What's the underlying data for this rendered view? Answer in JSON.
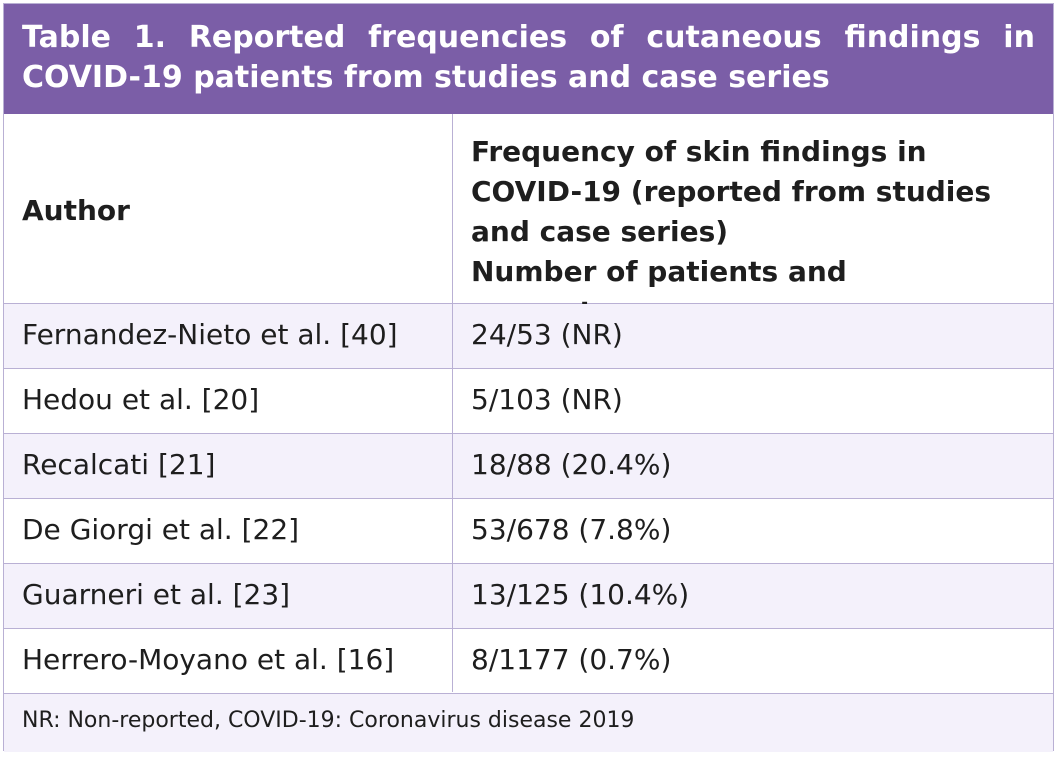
{
  "table": {
    "title_line1_words": [
      "Table",
      "1.",
      "Reported",
      "frequencies",
      "of",
      "cutaneous",
      "findings",
      "in"
    ],
    "title_line2": "COVID-19 patients from studies and case series",
    "header": {
      "author": "Author",
      "frequency_lines": [
        "Frequency of skin findings in",
        "COVID-19 (reported from studies",
        "and case series)",
        "Number of patients and percentages"
      ]
    },
    "rows": [
      {
        "author": "Fernandez-Nieto et al. [40]",
        "frequency": "24/53 (NR)"
      },
      {
        "author": "Hedou et al. [20]",
        "frequency": "5/103 (NR)"
      },
      {
        "author": "Recalcati [21]",
        "frequency": "18/88 (20.4%)"
      },
      {
        "author": "De Giorgi et al. [22]",
        "frequency": "53/678 (7.8%)"
      },
      {
        "author": "Guarneri et al. [23]",
        "frequency": "13/125 (10.4%)"
      },
      {
        "author": "Herrero-Moyano et al. [16]",
        "frequency": "8/1177 (0.7%)"
      }
    ],
    "footnote": "NR: Non-reported, COVID-19: Coronavirus disease 2019"
  },
  "colors": {
    "title_bg": "#7b5ea7",
    "row_shade": "#f4f1fb",
    "border": "#b9b0d4"
  }
}
